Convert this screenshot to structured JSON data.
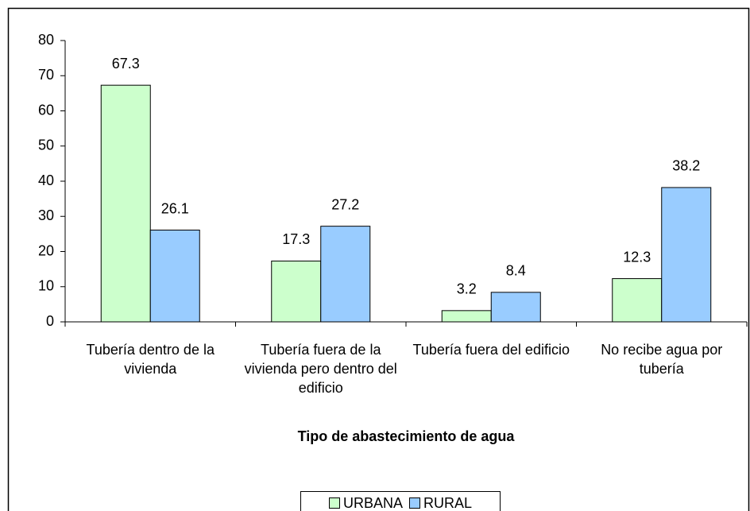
{
  "chart_data": {
    "type": "bar",
    "x_label": "Tipo de abastecimiento de agua",
    "categories": [
      "Tubería dentro de la vivienda",
      "Tubería fuera de la vivienda pero dentro del edificio",
      "Tubería fuera del edificio",
      "No recibe agua por tubería"
    ],
    "series": [
      {
        "name": "URBANA",
        "color": "#ccffcc",
        "values": [
          67.3,
          17.3,
          3.2,
          12.3
        ]
      },
      {
        "name": "RURAL",
        "color": "#99ccff",
        "values": [
          26.1,
          27.2,
          8.4,
          38.2
        ]
      }
    ],
    "ylim": [
      0,
      80
    ],
    "yticks": [
      0,
      10,
      20,
      30,
      40,
      50,
      60,
      70,
      80
    ],
    "legend": "bottom",
    "grid": false
  }
}
